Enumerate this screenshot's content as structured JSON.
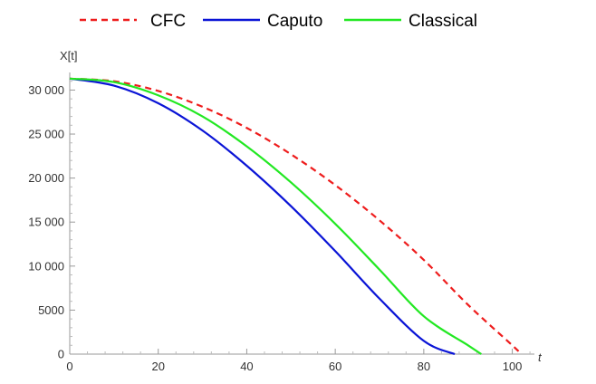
{
  "chart_data": {
    "type": "line",
    "xlabel": "t",
    "ylabel": "X[t]",
    "xlim": [
      0,
      105
    ],
    "ylim": [
      0,
      32000
    ],
    "x_ticks": [
      0,
      20,
      40,
      60,
      80,
      100
    ],
    "x_tick_labels": [
      "0",
      "20",
      "40",
      "60",
      "80",
      "100"
    ],
    "y_ticks": [
      0,
      5000,
      10000,
      15000,
      20000,
      25000,
      30000
    ],
    "y_tick_labels": [
      "0",
      "5000",
      "10 000",
      "15 000",
      "20 000",
      "25 000",
      "30 000"
    ],
    "grid": false,
    "legend_position": "top",
    "series": [
      {
        "name": "CFC",
        "color": "#ee1c1c",
        "dash": "dashed",
        "x": [
          0,
          10,
          20,
          30,
          40,
          50,
          60,
          70,
          80,
          90,
          100,
          102
        ],
        "y": [
          31300,
          31000,
          29900,
          28100,
          25700,
          22700,
          19200,
          15200,
          10700,
          5600,
          1000,
          0
        ]
      },
      {
        "name": "Caputo",
        "color": "#0a14d6",
        "dash": "solid",
        "x": [
          0,
          10,
          20,
          30,
          40,
          50,
          60,
          70,
          80,
          87
        ],
        "y": [
          31300,
          30500,
          28500,
          25400,
          21400,
          16800,
          11700,
          6300,
          1500,
          0
        ]
      },
      {
        "name": "Classical",
        "color": "#22e822",
        "dash": "solid",
        "x": [
          0,
          10,
          20,
          30,
          40,
          50,
          60,
          70,
          80,
          90,
          93
        ],
        "y": [
          31300,
          30900,
          29400,
          27000,
          23600,
          19500,
          14800,
          9600,
          4300,
          1000,
          0
        ]
      }
    ]
  }
}
